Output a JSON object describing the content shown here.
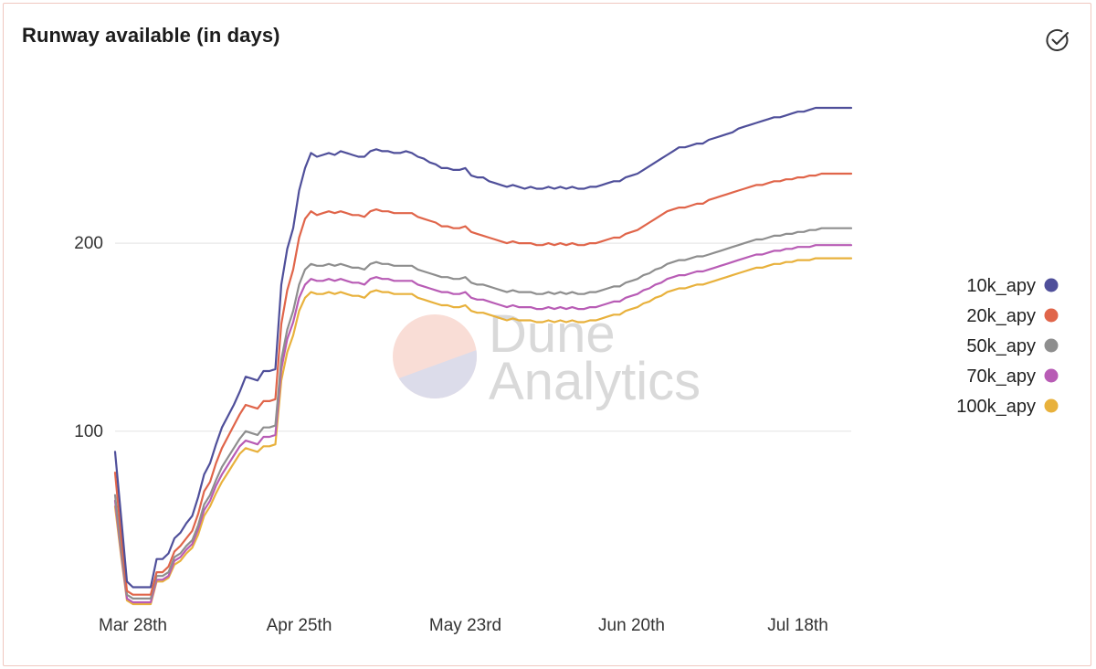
{
  "chart_data": {
    "type": "line",
    "title": "Runway available (in days)",
    "xlabel": "",
    "ylabel": "",
    "x": [
      0,
      1,
      2,
      3,
      4,
      5,
      6,
      7,
      8,
      9,
      10,
      11,
      12,
      13,
      14,
      15,
      16,
      17,
      18,
      19,
      20,
      21,
      22,
      23,
      24,
      25,
      26,
      27,
      28,
      29,
      30,
      31,
      32,
      33,
      34,
      35,
      36,
      37,
      38,
      39,
      40,
      41,
      42,
      43,
      44,
      45,
      46,
      47,
      48,
      49,
      50,
      51,
      52,
      53,
      54,
      55,
      56,
      57,
      58,
      59,
      60,
      61,
      62,
      63,
      64,
      65,
      66,
      67,
      68,
      69,
      70,
      71,
      72,
      73,
      74,
      75,
      76,
      77,
      78,
      79,
      80,
      81,
      82,
      83,
      84,
      85,
      86,
      87,
      88,
      89,
      90,
      91,
      92,
      93,
      94,
      95,
      96,
      97,
      98,
      99,
      100,
      101,
      102,
      103,
      104,
      105,
      106,
      107,
      108,
      109,
      110,
      111,
      112,
      113,
      114,
      115,
      116,
      117,
      118,
      119,
      120,
      121,
      122,
      123,
      124
    ],
    "x_ticks": [
      {
        "x": 3,
        "label": "Mar 28th"
      },
      {
        "x": 31,
        "label": "Apr 25th"
      },
      {
        "x": 59,
        "label": "May 23rd"
      },
      {
        "x": 87,
        "label": "Jun 20th"
      },
      {
        "x": 115,
        "label": "Jul 18th"
      }
    ],
    "y_ticks": [
      100,
      200
    ],
    "xlim": [
      0,
      124
    ],
    "ylim": [
      8.5,
      290.5
    ],
    "grid": "horizontal",
    "legend_position": "right",
    "series": [
      {
        "name": "10k_apy",
        "color": "#4f4f9a",
        "values": [
          89,
          55,
          20,
          17,
          17,
          17,
          17,
          32,
          32,
          35,
          43,
          46,
          51,
          55,
          65,
          77,
          83,
          93,
          102,
          108,
          114,
          121,
          129,
          128,
          127,
          132,
          132,
          133,
          178,
          197,
          208,
          228,
          240,
          248,
          246,
          247,
          248,
          247,
          249,
          248,
          247,
          246,
          246,
          249,
          250,
          249,
          249,
          248,
          248,
          249,
          248,
          246,
          245,
          243,
          242,
          240,
          240,
          239,
          239,
          240,
          236,
          235,
          235,
          233,
          232,
          231,
          230,
          231,
          230,
          229,
          230,
          229,
          229,
          230,
          229,
          230,
          229,
          230,
          229,
          229,
          230,
          230,
          231,
          232,
          233,
          233,
          235,
          236,
          237,
          239,
          241,
          243,
          245,
          247,
          249,
          251,
          251,
          252,
          253,
          253,
          255,
          256,
          257,
          258,
          259,
          261,
          262,
          263,
          264,
          265,
          266,
          267,
          267,
          268,
          269,
          270,
          270,
          271,
          272,
          272,
          272,
          272,
          272,
          272,
          272
        ]
      },
      {
        "name": "20k_apy",
        "color": "#e0654a",
        "values": [
          78,
          45,
          15,
          13,
          13,
          13,
          13,
          25,
          25,
          28,
          36,
          39,
          43,
          47,
          56,
          68,
          73,
          83,
          91,
          97,
          103,
          109,
          114,
          113,
          112,
          116,
          116,
          117,
          157,
          175,
          186,
          203,
          213,
          217,
          215,
          216,
          217,
          216,
          217,
          216,
          215,
          215,
          214,
          217,
          218,
          217,
          217,
          216,
          216,
          216,
          216,
          214,
          213,
          212,
          211,
          209,
          209,
          208,
          208,
          209,
          206,
          205,
          204,
          203,
          202,
          201,
          200,
          201,
          200,
          200,
          200,
          199,
          199,
          200,
          199,
          200,
          199,
          200,
          199,
          199,
          200,
          200,
          201,
          202,
          203,
          203,
          205,
          206,
          207,
          209,
          211,
          213,
          215,
          217,
          218,
          219,
          219,
          220,
          221,
          221,
          223,
          224,
          225,
          226,
          227,
          228,
          229,
          230,
          231,
          231,
          232,
          233,
          233,
          234,
          234,
          235,
          235,
          236,
          236,
          237,
          237,
          237,
          237,
          237,
          237
        ]
      },
      {
        "name": "50k_apy",
        "color": "#8e8e8e",
        "values": [
          66,
          38,
          13,
          11,
          11,
          11,
          11,
          23,
          23,
          25,
          33,
          35,
          39,
          42,
          50,
          61,
          66,
          74,
          81,
          86,
          91,
          96,
          100,
          99,
          98,
          102,
          102,
          103,
          138,
          154,
          164,
          178,
          186,
          189,
          188,
          188,
          189,
          188,
          189,
          188,
          187,
          187,
          186,
          189,
          190,
          189,
          189,
          188,
          188,
          188,
          188,
          186,
          185,
          184,
          183,
          182,
          182,
          181,
          181,
          182,
          179,
          178,
          178,
          177,
          176,
          175,
          174,
          175,
          174,
          174,
          174,
          173,
          173,
          174,
          173,
          174,
          173,
          174,
          173,
          173,
          174,
          174,
          175,
          176,
          177,
          177,
          179,
          180,
          181,
          183,
          184,
          186,
          187,
          189,
          190,
          191,
          191,
          192,
          193,
          193,
          194,
          195,
          196,
          197,
          198,
          199,
          200,
          201,
          202,
          202,
          203,
          204,
          204,
          205,
          205,
          206,
          206,
          207,
          207,
          208,
          208,
          208,
          208,
          208,
          208
        ]
      },
      {
        "name": "70k_apy",
        "color": "#b85cb5",
        "values": [
          63,
          36,
          11,
          9,
          9,
          9,
          9,
          21,
          21,
          23,
          31,
          33,
          37,
          40,
          48,
          58,
          63,
          71,
          77,
          82,
          87,
          92,
          95,
          94,
          93,
          97,
          97,
          98,
          133,
          149,
          158,
          171,
          178,
          181,
          180,
          180,
          181,
          180,
          181,
          180,
          179,
          179,
          178,
          181,
          182,
          181,
          181,
          180,
          180,
          180,
          180,
          178,
          177,
          176,
          175,
          174,
          174,
          173,
          173,
          174,
          171,
          170,
          170,
          169,
          168,
          167,
          166,
          167,
          166,
          166,
          166,
          165,
          165,
          166,
          165,
          166,
          165,
          166,
          165,
          165,
          166,
          166,
          167,
          168,
          169,
          169,
          171,
          172,
          173,
          175,
          176,
          178,
          179,
          181,
          182,
          183,
          183,
          184,
          185,
          185,
          186,
          187,
          188,
          189,
          190,
          191,
          192,
          193,
          194,
          194,
          195,
          196,
          196,
          197,
          197,
          198,
          198,
          198,
          199,
          199,
          199,
          199,
          199,
          199,
          199
        ]
      },
      {
        "name": "100k_apy",
        "color": "#e8b13c",
        "values": [
          60,
          34,
          10,
          8,
          8,
          8,
          8,
          20,
          20,
          22,
          29,
          31,
          35,
          38,
          45,
          55,
          60,
          67,
          73,
          78,
          83,
          88,
          91,
          90,
          89,
          92,
          92,
          93,
          127,
          142,
          151,
          164,
          171,
          174,
          173,
          173,
          174,
          173,
          174,
          173,
          172,
          172,
          171,
          174,
          175,
          174,
          174,
          173,
          173,
          173,
          173,
          171,
          170,
          169,
          168,
          167,
          167,
          166,
          166,
          167,
          164,
          163,
          163,
          162,
          161,
          160,
          159,
          160,
          159,
          159,
          159,
          158,
          158,
          159,
          158,
          159,
          158,
          159,
          158,
          158,
          159,
          159,
          160,
          161,
          162,
          162,
          164,
          165,
          166,
          168,
          169,
          171,
          172,
          174,
          175,
          176,
          176,
          177,
          178,
          178,
          179,
          180,
          181,
          182,
          183,
          184,
          185,
          186,
          187,
          187,
          188,
          189,
          189,
          190,
          190,
          191,
          191,
          191,
          192,
          192,
          192,
          192,
          192,
          192,
          192
        ]
      }
    ]
  },
  "watermark": {
    "line1": "Dune",
    "line2": "Analytics"
  },
  "icons": {
    "header_action": "check-circle-icon"
  }
}
